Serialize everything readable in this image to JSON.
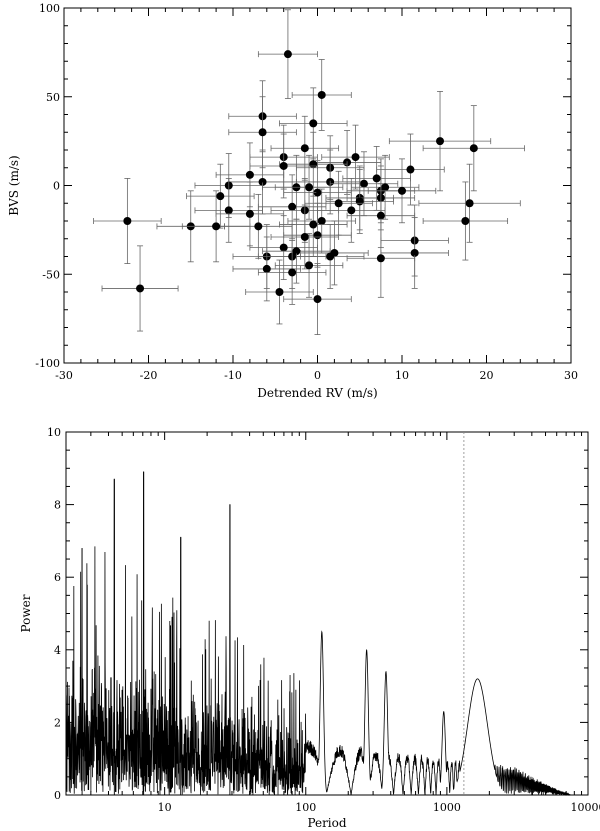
{
  "chart_data": [
    {
      "type": "scatter",
      "title": "",
      "xlabel": "Detrended RV (m/s)",
      "ylabel": "BVS (m/s)",
      "xlim": [
        -30,
        30
      ],
      "ylim": [
        -100,
        100
      ],
      "xticks": [
        -30,
        -20,
        -10,
        0,
        10,
        20,
        30
      ],
      "yticks": [
        -100,
        -50,
        0,
        50,
        100
      ],
      "grid": false,
      "error_bars": true,
      "points": [
        {
          "x": -3.5,
          "y": 74,
          "xerr": 3.5,
          "yerr": 25
        },
        {
          "x": 0.5,
          "y": 51,
          "xerr": 3.5,
          "yerr": 20
        },
        {
          "x": -6.5,
          "y": 39,
          "xerr": 4,
          "yerr": 20
        },
        {
          "x": -6.5,
          "y": 30,
          "xerr": 4,
          "yerr": 20
        },
        {
          "x": -0.5,
          "y": 35,
          "xerr": 4,
          "yerr": 20
        },
        {
          "x": 14.5,
          "y": 25,
          "xerr": 6,
          "yerr": 28
        },
        {
          "x": 18.5,
          "y": 21,
          "xerr": 6,
          "yerr": 24
        },
        {
          "x": -1.5,
          "y": 21,
          "xerr": 4,
          "yerr": 18
        },
        {
          "x": -4,
          "y": 16,
          "xerr": 4,
          "yerr": 18
        },
        {
          "x": 4.5,
          "y": 16,
          "xerr": 4,
          "yerr": 18
        },
        {
          "x": 3.5,
          "y": 13,
          "xerr": 4,
          "yerr": 18
        },
        {
          "x": -0.5,
          "y": 12,
          "xerr": 4,
          "yerr": 18
        },
        {
          "x": -4,
          "y": 11,
          "xerr": 4,
          "yerr": 18
        },
        {
          "x": 1.5,
          "y": 10,
          "xerr": 4,
          "yerr": 18
        },
        {
          "x": 11,
          "y": 9,
          "xerr": 4,
          "yerr": 20
        },
        {
          "x": -8,
          "y": 6,
          "xerr": 4,
          "yerr": 18
        },
        {
          "x": 7,
          "y": 4,
          "xerr": 4,
          "yerr": 18
        },
        {
          "x": -6.5,
          "y": 2,
          "xerr": 4,
          "yerr": 18
        },
        {
          "x": 1.5,
          "y": 2,
          "xerr": 4,
          "yerr": 18
        },
        {
          "x": 5.5,
          "y": 1,
          "xerr": 4,
          "yerr": 18
        },
        {
          "x": -10.5,
          "y": 0,
          "xerr": 4,
          "yerr": 18
        },
        {
          "x": -2.5,
          "y": -1,
          "xerr": 4,
          "yerr": 18
        },
        {
          "x": -1,
          "y": -1,
          "xerr": 4,
          "yerr": 18
        },
        {
          "x": 8,
          "y": -1,
          "xerr": 4,
          "yerr": 18
        },
        {
          "x": 7.5,
          "y": -3,
          "xerr": 4,
          "yerr": 18
        },
        {
          "x": 10,
          "y": -3,
          "xerr": 4,
          "yerr": 18
        },
        {
          "x": 0,
          "y": -4,
          "xerr": 4,
          "yerr": 18
        },
        {
          "x": -11.5,
          "y": -6,
          "xerr": 4,
          "yerr": 18
        },
        {
          "x": 5,
          "y": -7,
          "xerr": 4,
          "yerr": 18
        },
        {
          "x": 7.5,
          "y": -7,
          "xerr": 4,
          "yerr": 18
        },
        {
          "x": 5,
          "y": -9,
          "xerr": 4,
          "yerr": 18
        },
        {
          "x": 2.5,
          "y": -10,
          "xerr": 4,
          "yerr": 18
        },
        {
          "x": 18,
          "y": -10,
          "xerr": 6,
          "yerr": 22
        },
        {
          "x": -3,
          "y": -12,
          "xerr": 4,
          "yerr": 18
        },
        {
          "x": 4,
          "y": -14,
          "xerr": 4,
          "yerr": 18
        },
        {
          "x": -1.5,
          "y": -14,
          "xerr": 4,
          "yerr": 18
        },
        {
          "x": -10.5,
          "y": -14,
          "xerr": 4,
          "yerr": 18
        },
        {
          "x": -8,
          "y": -16,
          "xerr": 4,
          "yerr": 18
        },
        {
          "x": 7.5,
          "y": -17,
          "xerr": 4,
          "yerr": 18
        },
        {
          "x": 17.5,
          "y": -20,
          "xerr": 5,
          "yerr": 22
        },
        {
          "x": 0.5,
          "y": -20,
          "xerr": 4,
          "yerr": 18
        },
        {
          "x": -22.5,
          "y": -20,
          "xerr": 4,
          "yerr": 24
        },
        {
          "x": -0.5,
          "y": -22,
          "xerr": 4,
          "yerr": 18
        },
        {
          "x": -7,
          "y": -23,
          "xerr": 4,
          "yerr": 18
        },
        {
          "x": -15,
          "y": -23,
          "xerr": 4,
          "yerr": 20
        },
        {
          "x": -12,
          "y": -23,
          "xerr": 4,
          "yerr": 20
        },
        {
          "x": 0,
          "y": -28,
          "xerr": 4,
          "yerr": 18
        },
        {
          "x": -1.5,
          "y": -29,
          "xerr": 4,
          "yerr": 18
        },
        {
          "x": 11.5,
          "y": -31,
          "xerr": 4,
          "yerr": 20
        },
        {
          "x": -4,
          "y": -35,
          "xerr": 4,
          "yerr": 18
        },
        {
          "x": -2.5,
          "y": -37,
          "xerr": 4,
          "yerr": 18
        },
        {
          "x": 11.5,
          "y": -38,
          "xerr": 4,
          "yerr": 20
        },
        {
          "x": 2,
          "y": -38,
          "xerr": 4,
          "yerr": 18
        },
        {
          "x": -6,
          "y": -40,
          "xerr": 4,
          "yerr": 18
        },
        {
          "x": -3,
          "y": -40,
          "xerr": 4,
          "yerr": 18
        },
        {
          "x": 1.5,
          "y": -40,
          "xerr": 4,
          "yerr": 18
        },
        {
          "x": 7.5,
          "y": -41,
          "xerr": 4,
          "yerr": 22
        },
        {
          "x": -1,
          "y": -45,
          "xerr": 4,
          "yerr": 18
        },
        {
          "x": -6,
          "y": -47,
          "xerr": 4,
          "yerr": 18
        },
        {
          "x": -3,
          "y": -49,
          "xerr": 4,
          "yerr": 18
        },
        {
          "x": -21,
          "y": -58,
          "xerr": 4.5,
          "yerr": 24
        },
        {
          "x": -4.5,
          "y": -60,
          "xerr": 4,
          "yerr": 18
        },
        {
          "x": 0,
          "y": -64,
          "xerr": 4,
          "yerr": 20
        }
      ]
    },
    {
      "type": "line",
      "title": "",
      "xlabel": "Period",
      "ylabel": "Power",
      "xscale": "log",
      "xlim": [
        2,
        10000
      ],
      "ylim": [
        0,
        10
      ],
      "xtick_labels": [
        "10",
        "100",
        "1000",
        "10000"
      ],
      "xticks": [
        10,
        100,
        1000,
        10000
      ],
      "yticks": [
        0,
        2,
        4,
        6,
        8,
        10
      ],
      "grid": false,
      "reference_line": {
        "x": 1320,
        "style": "dotted"
      },
      "prominent_peaks": [
        {
          "x": 2.6,
          "y": 6.8
        },
        {
          "x": 4.4,
          "y": 8.7
        },
        {
          "x": 7.1,
          "y": 8.9
        },
        {
          "x": 13,
          "y": 7.1
        },
        {
          "x": 29,
          "y": 8.0
        },
        {
          "x": 130,
          "y": 4.5
        },
        {
          "x": 270,
          "y": 4.0
        },
        {
          "x": 370,
          "y": 3.4
        },
        {
          "x": 950,
          "y": 2.3
        },
        {
          "x": 1650,
          "y": 3.2
        }
      ]
    }
  ]
}
